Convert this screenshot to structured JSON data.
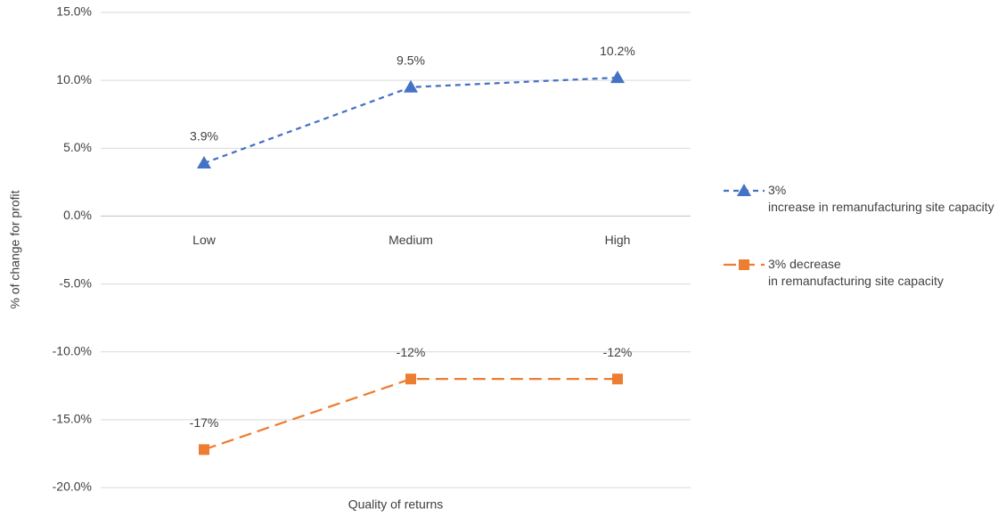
{
  "chart_data": {
    "type": "line",
    "y_label": "% of change for profit",
    "x_label": "Quality of returns",
    "categories": [
      "Low",
      "Medium",
      "High"
    ],
    "series": [
      {
        "name": "3% increase in remanufacturing site capacity",
        "color": "#4472c4",
        "marker": "triangle",
        "dash": "dashed",
        "values": [
          3.9,
          9.5,
          10.2
        ],
        "value_labels": [
          "3.9%",
          "9.5%",
          "10.2%"
        ]
      },
      {
        "name": "3% decrease in remanufacturing site capacity",
        "color": "#ed7d31",
        "marker": "square",
        "dash": "long-dashed",
        "values": [
          -17.2,
          -12,
          -12
        ],
        "value_labels": [
          "-17%",
          "-12%",
          "-12%"
        ]
      }
    ],
    "ylim": [
      -20,
      15
    ],
    "yticks": [
      {
        "value": -20,
        "label": "-20.0%"
      },
      {
        "value": -15,
        "label": "-15.0%"
      },
      {
        "value": -10,
        "label": "-10.0%"
      },
      {
        "value": -5,
        "label": "-5.0%"
      },
      {
        "value": 0,
        "label": "0.0%"
      },
      {
        "value": 5,
        "label": "5.0%"
      },
      {
        "value": 10,
        "label": "10.0%"
      },
      {
        "value": 15,
        "label": "15.0%"
      }
    ],
    "grid": true,
    "legend": "right"
  }
}
